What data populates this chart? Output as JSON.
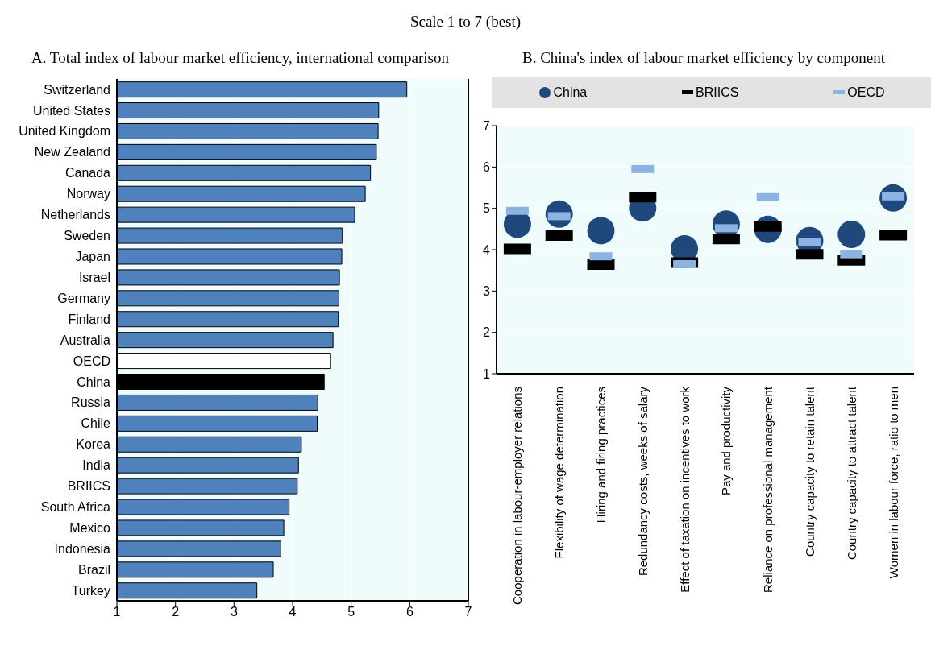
{
  "chart_data": [
    {
      "type": "bar",
      "orientation": "horizontal",
      "title": "A. Total index of labour market efficiency, international comparison",
      "annotations": [
        "Scale 1 to 7 (best)"
      ],
      "categories": [
        "Switzerland",
        "United States",
        "United Kingdom",
        "New Zealand",
        "Canada",
        "Norway",
        "Netherlands",
        "Sweden",
        "Japan",
        "Israel",
        "Germany",
        "Finland",
        "Australia",
        "OECD",
        "China",
        "Russia",
        "Chile",
        "Korea",
        "India",
        "BRIICS",
        "South Africa",
        "Mexico",
        "Indonesia",
        "Brazil",
        "Turkey"
      ],
      "values": [
        5.95,
        5.47,
        5.46,
        5.43,
        5.33,
        5.24,
        5.06,
        4.85,
        4.84,
        4.8,
        4.79,
        4.78,
        4.69,
        4.65,
        4.54,
        4.43,
        4.42,
        4.15,
        4.1,
        4.08,
        3.94,
        3.85,
        3.8,
        3.67,
        3.39
      ],
      "colors": [
        "#4f81bd",
        "#4f81bd",
        "#4f81bd",
        "#4f81bd",
        "#4f81bd",
        "#4f81bd",
        "#4f81bd",
        "#4f81bd",
        "#4f81bd",
        "#4f81bd",
        "#4f81bd",
        "#4f81bd",
        "#4f81bd",
        "#ffffff",
        "#000000",
        "#4f81bd",
        "#4f81bd",
        "#4f81bd",
        "#4f81bd",
        "#4f81bd",
        "#4f81bd",
        "#4f81bd",
        "#4f81bd",
        "#4f81bd",
        "#4f81bd"
      ],
      "xlim": [
        1,
        7
      ],
      "xticks": [
        1,
        2,
        3,
        4,
        5,
        6,
        7
      ],
      "grid": "x"
    },
    {
      "type": "scatter",
      "title": "B. China's index of labour market efficiency by component",
      "legend": "top",
      "grid": "y",
      "categories": [
        "Cooperation in labour-employer relations",
        "Flexibility of wage determination",
        "Hiring and firing practices",
        "Redundancy costs, weeks of salary",
        "Effect of taxation on incentives to work",
        "Pay and productivity",
        "Reliance on professional management",
        "Country capacity to retain talent",
        "Country capacity to attract talent",
        "Women in labour force, ratio to men"
      ],
      "ylim": [
        1,
        7
      ],
      "yticks": [
        1,
        2,
        3,
        4,
        5,
        6,
        7
      ],
      "series": [
        {
          "name": "China",
          "color": "#1f497d",
          "marker": "circle",
          "values": [
            4.62,
            4.86,
            4.46,
            5.01,
            4.02,
            4.62,
            4.49,
            4.22,
            4.37,
            5.25
          ]
        },
        {
          "name": "BRIICS",
          "color": "#000000",
          "marker": "square",
          "values": [
            4.02,
            4.34,
            3.64,
            5.27,
            3.69,
            4.26,
            4.56,
            3.89,
            3.74,
            4.35
          ]
        },
        {
          "name": "OECD",
          "color": "#8db3e2",
          "marker": "square",
          "values": [
            4.94,
            4.81,
            3.84,
            5.95,
            3.65,
            4.52,
            5.27,
            4.18,
            3.89,
            5.29
          ]
        }
      ]
    }
  ]
}
